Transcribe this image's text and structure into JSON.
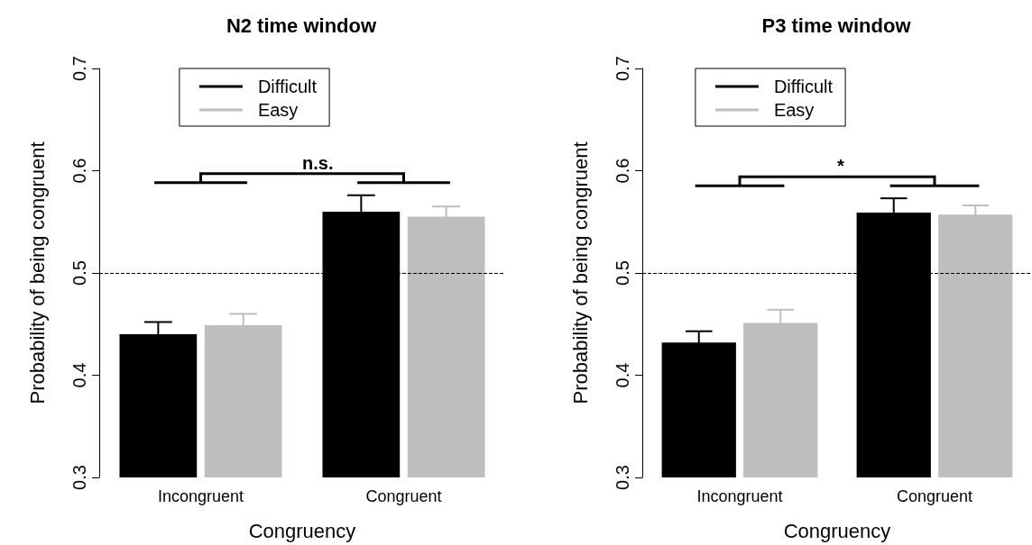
{
  "chart_data": [
    {
      "type": "bar",
      "title": "N2 time window",
      "xlabel": "Congruency",
      "ylabel": "Probability of being congruent",
      "categories": [
        "Incongruent",
        "Congruent"
      ],
      "series": [
        {
          "name": "Difficult",
          "color": "#000000",
          "values": [
            0.44,
            0.56
          ],
          "errors": [
            0.012,
            0.016
          ]
        },
        {
          "name": "Easy",
          "color": "#bebebe",
          "values": [
            0.449,
            0.555
          ],
          "errors": [
            0.011,
            0.01
          ]
        }
      ],
      "ylim": [
        0.3,
        0.7
      ],
      "yticks": [
        0.3,
        0.4,
        0.5,
        0.6,
        0.7
      ],
      "grid": false,
      "legend": "top",
      "ref_lines": [
        {
          "axis": "y",
          "value": 0.5,
          "line_style": "dashed",
          "color": "#000000"
        }
      ],
      "annotations": [
        "n.s."
      ]
    },
    {
      "type": "bar",
      "title": "P3 time window",
      "xlabel": "Congruency",
      "ylabel": "Probability of being congruent",
      "categories": [
        "Incongruent",
        "Congruent"
      ],
      "series": [
        {
          "name": "Difficult",
          "color": "#000000",
          "values": [
            0.432,
            0.559
          ],
          "errors": [
            0.011,
            0.014
          ]
        },
        {
          "name": "Easy",
          "color": "#bebebe",
          "values": [
            0.451,
            0.557
          ],
          "errors": [
            0.013,
            0.009
          ]
        }
      ],
      "ylim": [
        0.3,
        0.7
      ],
      "yticks": [
        0.3,
        0.4,
        0.5,
        0.6,
        0.7
      ],
      "grid": false,
      "legend": "top",
      "ref_lines": [
        {
          "axis": "y",
          "value": 0.5,
          "line_style": "dashed",
          "color": "#000000"
        }
      ],
      "annotations": [
        "*"
      ]
    }
  ]
}
